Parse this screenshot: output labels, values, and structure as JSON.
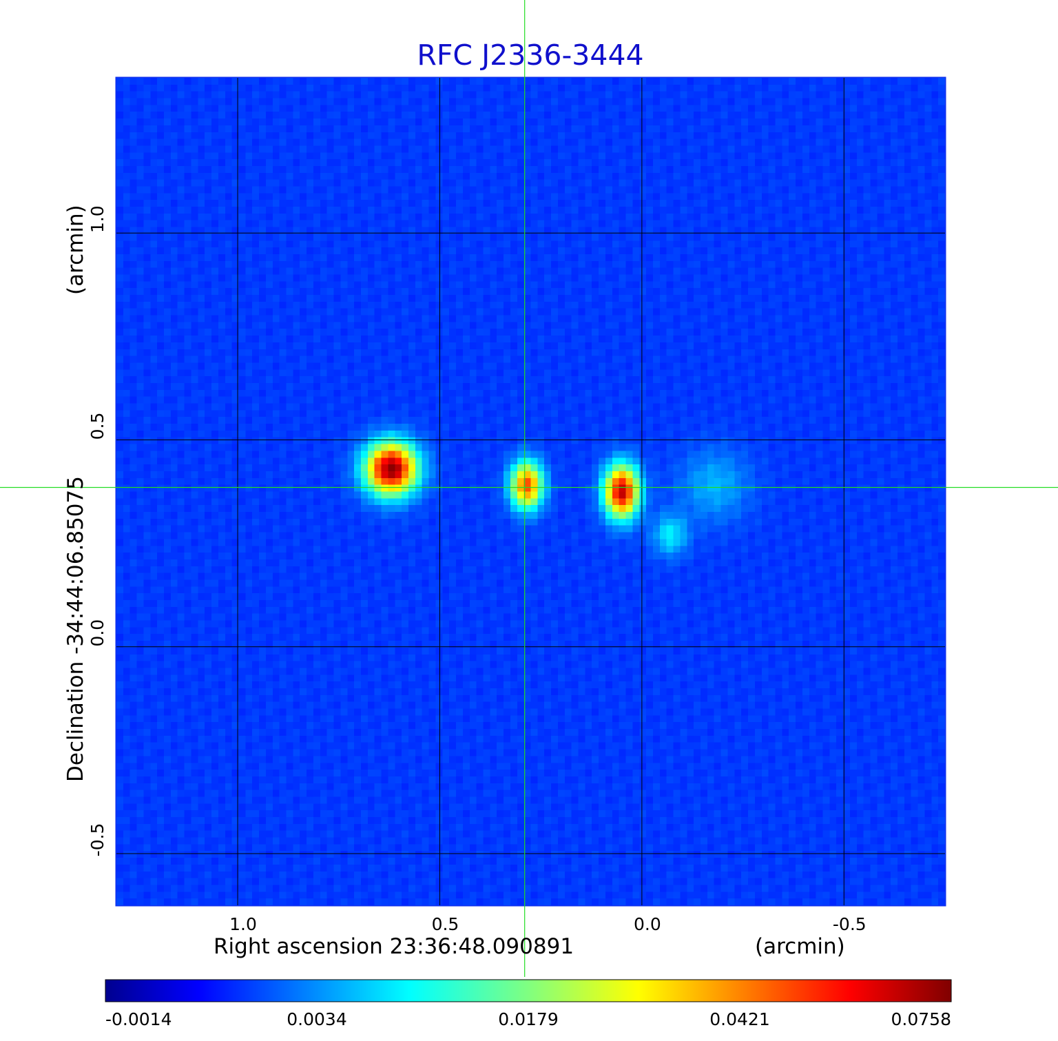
{
  "chart_data": {
    "type": "heatmap",
    "title": "RFC J2336-3444",
    "xlabel": "Right ascension  23:36:48.090891",
    "xunit": "(arcmin)",
    "ylabel": "Declination  -34:44:06.85075",
    "yunit": "(arcmin)",
    "xlim": [
      1.3,
      -0.75
    ],
    "ylim": [
      -0.625,
      1.375
    ],
    "x_ticks": [
      {
        "value": 1.0,
        "label": "1.0"
      },
      {
        "value": 0.5,
        "label": "0.5"
      },
      {
        "value": 0.0,
        "label": "0.0"
      },
      {
        "value": -0.5,
        "label": "-0.5"
      }
    ],
    "y_ticks": [
      {
        "value": 1.0,
        "label": "1.0"
      },
      {
        "value": 0.5,
        "label": "0.5"
      },
      {
        "value": 0.0,
        "label": "0.0"
      },
      {
        "value": -0.5,
        "label": "-0.5"
      }
    ],
    "grid": true,
    "crosshair": {
      "x": 0.29,
      "y": 0.385,
      "color": "#22dd22"
    },
    "colormap": "jet",
    "colorbar": {
      "position": "bottom",
      "labels": [
        "-0.0014",
        "0.0034",
        "0.0179",
        "0.0421",
        "0.0758"
      ]
    },
    "background_level": 0.18,
    "sources": [
      {
        "x": 0.62,
        "y": 0.43,
        "peak": 0.0758,
        "level": 0.99,
        "sx": 0.045,
        "sy": 0.045
      },
      {
        "x": 0.285,
        "y": 0.39,
        "peak": 0.04,
        "level": 0.8,
        "sx": 0.028,
        "sy": 0.04
      },
      {
        "x": 0.05,
        "y": 0.375,
        "peak": 0.07,
        "level": 0.93,
        "sx": 0.03,
        "sy": 0.045
      },
      {
        "x": -0.07,
        "y": 0.27,
        "peak": 0.005,
        "level": 0.36,
        "sx": 0.03,
        "sy": 0.035
      },
      {
        "x": -0.18,
        "y": 0.39,
        "peak": 0.004,
        "level": 0.3,
        "sx": 0.06,
        "sy": 0.06
      }
    ]
  }
}
